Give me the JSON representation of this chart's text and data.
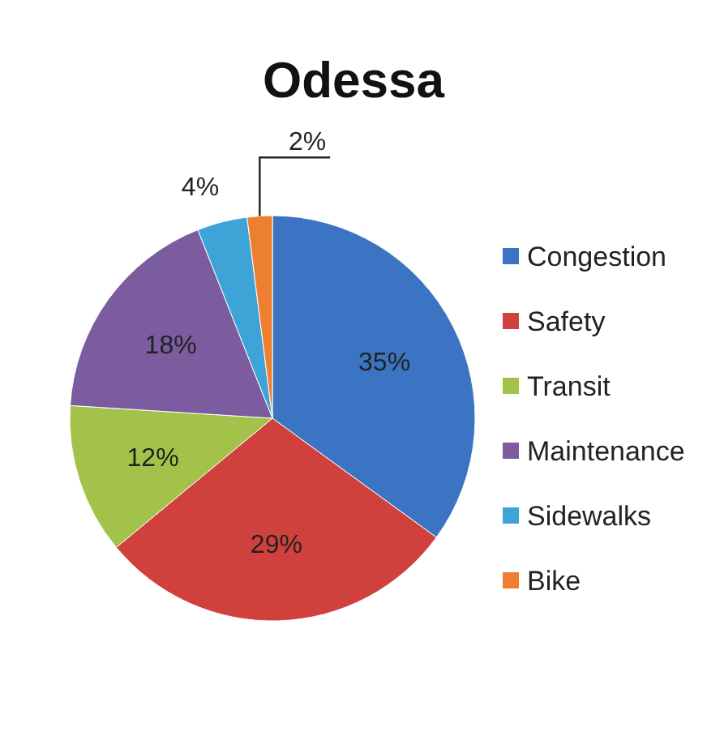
{
  "chart_data": {
    "type": "pie",
    "title": "Odessa",
    "categories": [
      "Congestion",
      "Safety",
      "Transit",
      "Maintenance",
      "Sidewalks",
      "Bike"
    ],
    "values": [
      35,
      29,
      12,
      18,
      4,
      2
    ],
    "colors": [
      "#3b74c2",
      "#d0413e",
      "#a2c24a",
      "#7a5c9f",
      "#3ea3d6",
      "#ef7f30"
    ],
    "value_labels": [
      "35%",
      "29%",
      "12%",
      "18%",
      "4%",
      "2%"
    ],
    "legend": "right"
  }
}
